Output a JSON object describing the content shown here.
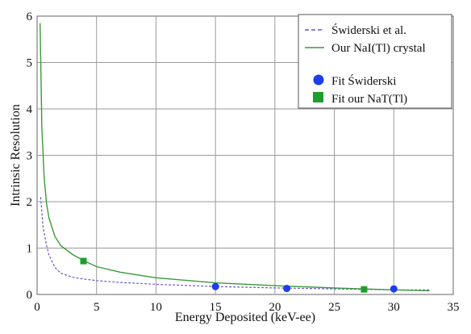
{
  "chart_data": {
    "type": "line",
    "xlabel": "Energy Deposited (keV-ee)",
    "ylabel": "Intrinsic Resolution",
    "xlim": [
      0,
      35
    ],
    "ylim": [
      0,
      6
    ],
    "x_ticks": [
      "0",
      "5",
      "10",
      "15",
      "20",
      "25",
      "30",
      "35"
    ],
    "y_ticks": [
      "0",
      "1",
      "2",
      "3",
      "4",
      "5",
      "6"
    ],
    "grid": true,
    "legend_position": "top-right",
    "series": [
      {
        "name": "Świderski et al.",
        "kind": "curve",
        "style": "dashed",
        "color": "#6a5acd",
        "x": [
          0.3,
          0.5,
          0.8,
          1.0,
          1.5,
          2.0,
          3.0,
          4.0,
          5.0,
          7.0,
          10.0,
          15.0,
          20.0,
          25.0,
          30.0,
          33.0
        ],
        "y": [
          2.1,
          1.45,
          1.05,
          0.85,
          0.58,
          0.46,
          0.37,
          0.33,
          0.3,
          0.26,
          0.22,
          0.17,
          0.14,
          0.12,
          0.1,
          0.1
        ]
      },
      {
        "name": "Our NaI(Tl) crystal",
        "kind": "curve",
        "style": "solid",
        "color": "#3a9a3a",
        "x": [
          0.25,
          0.4,
          0.6,
          0.8,
          1.0,
          1.5,
          2.0,
          3.0,
          4.0,
          5.0,
          7.0,
          10.0,
          15.0,
          20.0,
          25.0,
          30.0,
          33.0
        ],
        "y": [
          5.85,
          3.6,
          2.5,
          1.95,
          1.65,
          1.25,
          1.05,
          0.86,
          0.72,
          0.6,
          0.48,
          0.36,
          0.25,
          0.19,
          0.14,
          0.1,
          0.08
        ]
      },
      {
        "name": "Fit  Świderski",
        "kind": "points",
        "marker": "circle",
        "color": "#1e3cf0",
        "x": [
          15.0,
          21.0,
          30.0
        ],
        "y": [
          0.17,
          0.13,
          0.12
        ]
      },
      {
        "name": "Fit our NaT(Tl)",
        "kind": "points",
        "marker": "square",
        "color": "#1f9d2e",
        "x": [
          3.9,
          27.5
        ],
        "y": [
          0.72,
          0.11
        ]
      }
    ]
  }
}
